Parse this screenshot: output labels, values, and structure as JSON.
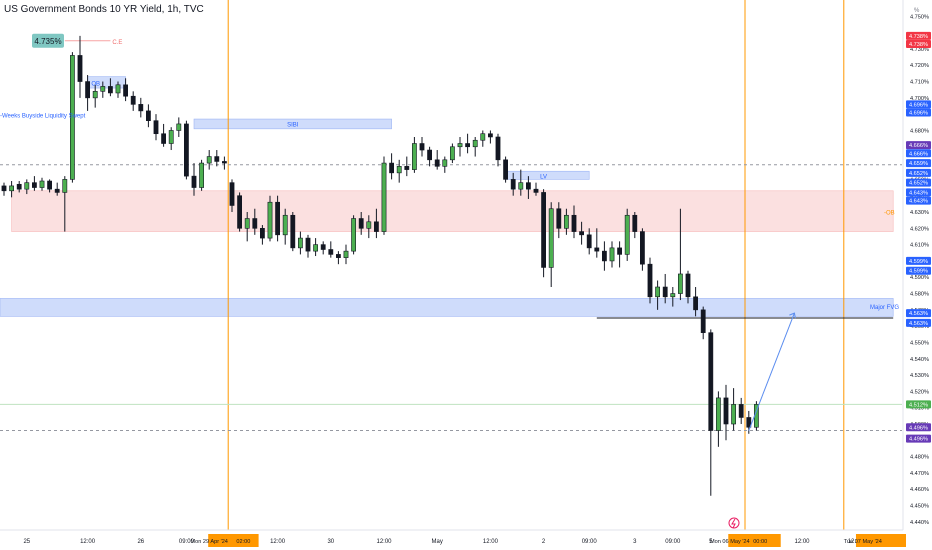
{
  "title": "US Government Bonds 10 YR Yield, 1h, TVC",
  "axis_corner_label": "%",
  "colors": {
    "up": "#4caf50",
    "down": "#131722",
    "wick": "#131722",
    "orange_line": "#ff9800",
    "blue_zone": "#cfdcfb",
    "red_zone": "#fbe0e0",
    "grid_dash": "#9598a1",
    "blue_tag": "#2962ff",
    "red_tag": "#f23645",
    "purple_tag": "#673ab7",
    "green_tag": "#4caf50"
  },
  "chart_data": {
    "type": "candlestick",
    "y_unit": "%",
    "ylim": [
      4.435,
      4.76
    ],
    "y_ticks": [
      "4.750%",
      "4.730%",
      "4.720%",
      "4.710%",
      "4.700%",
      "4.690%",
      "4.680%",
      "4.670%",
      "4.660%",
      "4.650%",
      "4.640%",
      "4.630%",
      "4.620%",
      "4.610%",
      "4.600%",
      "4.590%",
      "4.580%",
      "4.570%",
      "4.560%",
      "4.550%",
      "4.540%",
      "4.530%",
      "4.520%",
      "4.510%",
      "4.500%",
      "4.490%",
      "4.480%",
      "4.470%",
      "4.460%",
      "4.450%",
      "4.440%"
    ],
    "price_tags": [
      {
        "label": "4.738%",
        "value": 4.738,
        "color": "red"
      },
      {
        "label": "4.738%",
        "value": 4.733,
        "color": "red"
      },
      {
        "label": "4.696%",
        "value": 4.696,
        "color": "blue"
      },
      {
        "label": "4.696%",
        "value": 4.691,
        "color": "blue"
      },
      {
        "label": "4.666%",
        "value": 4.671,
        "color": "purple"
      },
      {
        "label": "4.666%",
        "value": 4.666,
        "color": "blue"
      },
      {
        "label": "4.659%",
        "value": 4.66,
        "color": "blue"
      },
      {
        "label": "4.652%",
        "value": 4.654,
        "color": "blue"
      },
      {
        "label": "4.652%",
        "value": 4.648,
        "color": "blue"
      },
      {
        "label": "4.643%",
        "value": 4.642,
        "color": "blue"
      },
      {
        "label": "4.643%",
        "value": 4.637,
        "color": "blue"
      },
      {
        "label": "4.599%",
        "value": 4.6,
        "color": "blue"
      },
      {
        "label": "4.599%",
        "value": 4.594,
        "color": "blue"
      },
      {
        "label": "4.563%",
        "value": 4.568,
        "color": "blue"
      },
      {
        "label": "4.563%",
        "value": 4.562,
        "color": "blue"
      },
      {
        "label": "4.512%",
        "value": 4.512,
        "color": "green"
      },
      {
        "label": "4.496%",
        "value": 4.498,
        "color": "purple"
      },
      {
        "label": "4.496%",
        "value": 4.491,
        "color": "purple"
      }
    ],
    "x_labels": [
      {
        "label": "25",
        "slot": 3
      },
      {
        "label": "12:00",
        "slot": 11
      },
      {
        "label": "26",
        "slot": 18
      },
      {
        "label": "09:00",
        "slot": 24
      },
      {
        "label": "12:00",
        "slot": 36
      },
      {
        "label": "30",
        "slot": 43
      },
      {
        "label": "12:00",
        "slot": 50
      },
      {
        "label": "May",
        "slot": 57
      },
      {
        "label": "12:00",
        "slot": 64
      },
      {
        "label": "2",
        "slot": 71
      },
      {
        "label": "09:00",
        "slot": 77
      },
      {
        "label": "3",
        "slot": 83
      },
      {
        "label": "09:00",
        "slot": 88
      },
      {
        "label": "5",
        "slot": 93
      },
      {
        "label": "12:00",
        "slot": 105
      },
      {
        "label": "12:00",
        "slot": 112
      }
    ],
    "x_highlight_labels": [
      {
        "label": "Mon 29 Apr '24",
        "slot": 27
      },
      {
        "label": "02:00",
        "slot": 31.5
      },
      {
        "label": "Mon 06 May '24",
        "slot": 95.5
      },
      {
        "label": "00:00",
        "slot": 99.5
      },
      {
        "label": "Tue 07 May '24",
        "slot": 113
      }
    ],
    "session_lines_slots": [
      29.5,
      97.5,
      110.5
    ],
    "candles": [
      {
        "o": 4.646,
        "h": 4.648,
        "l": 4.64,
        "c": 4.643
      },
      {
        "o": 4.643,
        "h": 4.649,
        "l": 4.639,
        "c": 4.646
      },
      {
        "o": 4.647,
        "h": 4.649,
        "l": 4.642,
        "c": 4.644
      },
      {
        "o": 4.644,
        "h": 4.65,
        "l": 4.641,
        "c": 4.648
      },
      {
        "o": 4.648,
        "h": 4.652,
        "l": 4.643,
        "c": 4.645
      },
      {
        "o": 4.645,
        "h": 4.651,
        "l": 4.643,
        "c": 4.649
      },
      {
        "o": 4.649,
        "h": 4.65,
        "l": 4.642,
        "c": 4.644
      },
      {
        "o": 4.644,
        "h": 4.648,
        "l": 4.64,
        "c": 4.642
      },
      {
        "o": 4.642,
        "h": 4.652,
        "l": 4.618,
        "c": 4.65
      },
      {
        "o": 4.65,
        "h": 4.728,
        "l": 4.648,
        "c": 4.726
      },
      {
        "o": 4.726,
        "h": 4.738,
        "l": 4.7,
        "c": 4.71
      },
      {
        "o": 4.71,
        "h": 4.714,
        "l": 4.692,
        "c": 4.7
      },
      {
        "o": 4.7,
        "h": 4.708,
        "l": 4.694,
        "c": 4.704
      },
      {
        "o": 4.704,
        "h": 4.71,
        "l": 4.7,
        "c": 4.707
      },
      {
        "o": 4.707,
        "h": 4.712,
        "l": 4.701,
        "c": 4.703
      },
      {
        "o": 4.703,
        "h": 4.71,
        "l": 4.7,
        "c": 4.708
      },
      {
        "o": 4.708,
        "h": 4.712,
        "l": 4.698,
        "c": 4.701
      },
      {
        "o": 4.701,
        "h": 4.704,
        "l": 4.692,
        "c": 4.696
      },
      {
        "o": 4.696,
        "h": 4.7,
        "l": 4.688,
        "c": 4.692
      },
      {
        "o": 4.692,
        "h": 4.696,
        "l": 4.682,
        "c": 4.686
      },
      {
        "o": 4.686,
        "h": 4.69,
        "l": 4.674,
        "c": 4.678
      },
      {
        "o": 4.678,
        "h": 4.684,
        "l": 4.67,
        "c": 4.672
      },
      {
        "o": 4.672,
        "h": 4.682,
        "l": 4.668,
        "c": 4.68
      },
      {
        "o": 4.68,
        "h": 4.688,
        "l": 4.676,
        "c": 4.684
      },
      {
        "o": 4.684,
        "h": 4.686,
        "l": 4.65,
        "c": 4.652
      },
      {
        "o": 4.652,
        "h": 4.66,
        "l": 4.64,
        "c": 4.645
      },
      {
        "o": 4.645,
        "h": 4.662,
        "l": 4.643,
        "c": 4.66
      },
      {
        "o": 4.66,
        "h": 4.668,
        "l": 4.656,
        "c": 4.664
      },
      {
        "o": 4.664,
        "h": 4.668,
        "l": 4.658,
        "c": 4.661
      },
      {
        "o": 4.661,
        "h": 4.664,
        "l": 4.656,
        "c": 4.66
      },
      {
        "o": 4.648,
        "h": 4.65,
        "l": 4.63,
        "c": 4.634
      },
      {
        "o": 4.64,
        "h": 4.642,
        "l": 4.618,
        "c": 4.62
      },
      {
        "o": 4.62,
        "h": 4.63,
        "l": 4.612,
        "c": 4.626
      },
      {
        "o": 4.626,
        "h": 4.632,
        "l": 4.616,
        "c": 4.62
      },
      {
        "o": 4.62,
        "h": 4.622,
        "l": 4.61,
        "c": 4.614
      },
      {
        "o": 4.614,
        "h": 4.64,
        "l": 4.612,
        "c": 4.636
      },
      {
        "o": 4.636,
        "h": 4.64,
        "l": 4.612,
        "c": 4.616
      },
      {
        "o": 4.616,
        "h": 4.632,
        "l": 4.61,
        "c": 4.628
      },
      {
        "o": 4.628,
        "h": 4.63,
        "l": 4.606,
        "c": 4.608
      },
      {
        "o": 4.608,
        "h": 4.618,
        "l": 4.604,
        "c": 4.614
      },
      {
        "o": 4.614,
        "h": 4.616,
        "l": 4.602,
        "c": 4.606
      },
      {
        "o": 4.606,
        "h": 4.614,
        "l": 4.603,
        "c": 4.61
      },
      {
        "o": 4.61,
        "h": 4.612,
        "l": 4.604,
        "c": 4.607
      },
      {
        "o": 4.607,
        "h": 4.612,
        "l": 4.602,
        "c": 4.604
      },
      {
        "o": 4.604,
        "h": 4.606,
        "l": 4.598,
        "c": 4.602
      },
      {
        "o": 4.602,
        "h": 4.61,
        "l": 4.598,
        "c": 4.606
      },
      {
        "o": 4.606,
        "h": 4.628,
        "l": 4.604,
        "c": 4.626
      },
      {
        "o": 4.626,
        "h": 4.63,
        "l": 4.616,
        "c": 4.62
      },
      {
        "o": 4.62,
        "h": 4.628,
        "l": 4.614,
        "c": 4.624
      },
      {
        "o": 4.624,
        "h": 4.632,
        "l": 4.614,
        "c": 4.618
      },
      {
        "o": 4.618,
        "h": 4.664,
        "l": 4.616,
        "c": 4.66
      },
      {
        "o": 4.66,
        "h": 4.666,
        "l": 4.65,
        "c": 4.654
      },
      {
        "o": 4.654,
        "h": 4.662,
        "l": 4.648,
        "c": 4.658
      },
      {
        "o": 4.658,
        "h": 4.664,
        "l": 4.652,
        "c": 4.656
      },
      {
        "o": 4.656,
        "h": 4.676,
        "l": 4.654,
        "c": 4.672
      },
      {
        "o": 4.672,
        "h": 4.676,
        "l": 4.664,
        "c": 4.668
      },
      {
        "o": 4.668,
        "h": 4.67,
        "l": 4.658,
        "c": 4.662
      },
      {
        "o": 4.662,
        "h": 4.668,
        "l": 4.656,
        "c": 4.658
      },
      {
        "o": 4.658,
        "h": 4.664,
        "l": 4.654,
        "c": 4.662
      },
      {
        "o": 4.662,
        "h": 4.672,
        "l": 4.66,
        "c": 4.67
      },
      {
        "o": 4.67,
        "h": 4.676,
        "l": 4.664,
        "c": 4.672
      },
      {
        "o": 4.672,
        "h": 4.678,
        "l": 4.666,
        "c": 4.67
      },
      {
        "o": 4.67,
        "h": 4.676,
        "l": 4.664,
        "c": 4.674
      },
      {
        "o": 4.674,
        "h": 4.68,
        "l": 4.67,
        "c": 4.678
      },
      {
        "o": 4.678,
        "h": 4.68,
        "l": 4.672,
        "c": 4.676
      },
      {
        "o": 4.676,
        "h": 4.678,
        "l": 4.658,
        "c": 4.662
      },
      {
        "o": 4.662,
        "h": 4.664,
        "l": 4.648,
        "c": 4.65
      },
      {
        "o": 4.65,
        "h": 4.654,
        "l": 4.64,
        "c": 4.644
      },
      {
        "o": 4.644,
        "h": 4.656,
        "l": 4.64,
        "c": 4.648
      },
      {
        "o": 4.648,
        "h": 4.652,
        "l": 4.638,
        "c": 4.644
      },
      {
        "o": 4.644,
        "h": 4.648,
        "l": 4.64,
        "c": 4.642
      },
      {
        "o": 4.642,
        "h": 4.644,
        "l": 4.59,
        "c": 4.596
      },
      {
        "o": 4.596,
        "h": 4.636,
        "l": 4.584,
        "c": 4.632
      },
      {
        "o": 4.632,
        "h": 4.636,
        "l": 4.614,
        "c": 4.62
      },
      {
        "o": 4.62,
        "h": 4.632,
        "l": 4.616,
        "c": 4.628
      },
      {
        "o": 4.628,
        "h": 4.634,
        "l": 4.614,
        "c": 4.618
      },
      {
        "o": 4.618,
        "h": 4.624,
        "l": 4.61,
        "c": 4.616
      },
      {
        "o": 4.616,
        "h": 4.62,
        "l": 4.604,
        "c": 4.608
      },
      {
        "o": 4.608,
        "h": 4.62,
        "l": 4.602,
        "c": 4.606
      },
      {
        "o": 4.606,
        "h": 4.612,
        "l": 4.594,
        "c": 4.6
      },
      {
        "o": 4.6,
        "h": 4.612,
        "l": 4.596,
        "c": 4.608
      },
      {
        "o": 4.608,
        "h": 4.612,
        "l": 4.596,
        "c": 4.604
      },
      {
        "o": 4.604,
        "h": 4.632,
        "l": 4.6,
        "c": 4.628
      },
      {
        "o": 4.628,
        "h": 4.63,
        "l": 4.614,
        "c": 4.618
      },
      {
        "o": 4.618,
        "h": 4.62,
        "l": 4.594,
        "c": 4.598
      },
      {
        "o": 4.598,
        "h": 4.602,
        "l": 4.574,
        "c": 4.578
      },
      {
        "o": 4.578,
        "h": 4.588,
        "l": 4.57,
        "c": 4.584
      },
      {
        "o": 4.584,
        "h": 4.592,
        "l": 4.574,
        "c": 4.578
      },
      {
        "o": 4.578,
        "h": 4.584,
        "l": 4.572,
        "c": 4.58
      },
      {
        "o": 4.58,
        "h": 4.632,
        "l": 4.576,
        "c": 4.592
      },
      {
        "o": 4.592,
        "h": 4.594,
        "l": 4.574,
        "c": 4.578
      },
      {
        "o": 4.578,
        "h": 4.584,
        "l": 4.566,
        "c": 4.57
      },
      {
        "o": 4.57,
        "h": 4.572,
        "l": 4.552,
        "c": 4.556
      },
      {
        "o": 4.556,
        "h": 4.558,
        "l": 4.456,
        "c": 4.496
      },
      {
        "o": 4.496,
        "h": 4.52,
        "l": 4.486,
        "c": 4.516
      },
      {
        "o": 4.516,
        "h": 4.524,
        "l": 4.49,
        "c": 4.5
      },
      {
        "o": 4.5,
        "h": 4.522,
        "l": 4.496,
        "c": 4.512
      },
      {
        "o": 4.512,
        "h": 4.516,
        "l": 4.5,
        "c": 4.504
      },
      {
        "o": 4.504,
        "h": 4.508,
        "l": 4.494,
        "c": 4.498
      },
      {
        "o": 4.498,
        "h": 4.514,
        "l": 4.496,
        "c": 4.512
      }
    ],
    "annotations": [
      {
        "text": "4.735%",
        "type": "value-badge"
      },
      {
        "text": "C.E",
        "type": "label"
      },
      {
        "text": "OB",
        "type": "zone-label"
      },
      {
        "text": "-Weeks Buyside Liquidity Swept",
        "type": "label"
      },
      {
        "text": "SIBI",
        "type": "zone-label"
      },
      {
        "text": "LV",
        "type": "zone-label"
      },
      {
        "text": "-OB",
        "type": "zone-label"
      },
      {
        "text": "Major FVG",
        "type": "zone-label"
      }
    ],
    "zones": [
      {
        "name": "OB",
        "y": [
          4.706,
          4.713
        ],
        "slots": [
          11,
          16
        ]
      },
      {
        "name": "SIBI",
        "y": [
          4.681,
          4.687
        ],
        "slots": [
          25,
          51
        ]
      },
      {
        "name": "LV",
        "y": [
          4.65,
          4.655
        ],
        "slots": [
          66,
          77
        ]
      },
      {
        "name": "-OB",
        "y": [
          4.618,
          4.643
        ],
        "slots": [
          1,
          117
        ]
      },
      {
        "name": "Major FVG",
        "y": [
          4.566,
          4.577
        ],
        "slots": [
          0,
          117
        ]
      }
    ],
    "levels": [
      {
        "name": "C.E",
        "y": 4.735,
        "slots": [
          8,
          14
        ]
      },
      {
        "name": "dashed-upper",
        "y": 4.659,
        "dashed": true
      },
      {
        "name": "dashed-lower",
        "y": 4.496,
        "dashed": true
      },
      {
        "name": "green-level",
        "y": 4.512,
        "dashed": false
      },
      {
        "name": "black-level",
        "y": 4.565,
        "slots": [
          78,
          117
        ]
      }
    ],
    "projection": {
      "from": {
        "slot": 98,
        "y": 4.496
      },
      "to": {
        "slot": 104,
        "y": 4.568
      }
    }
  }
}
